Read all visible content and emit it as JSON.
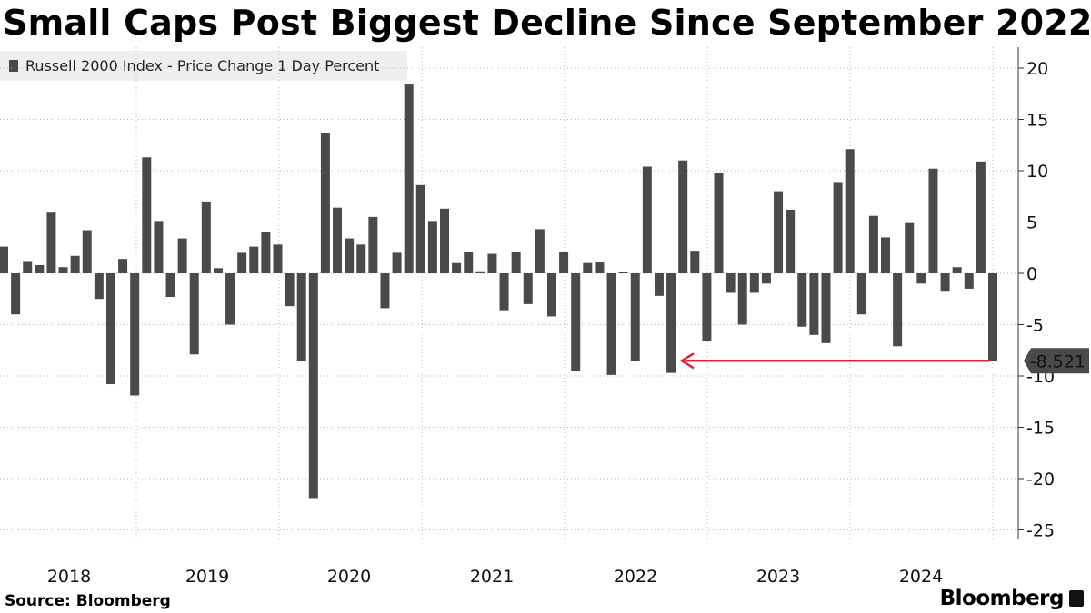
{
  "header": {
    "title": "Small Caps Post Biggest Decline Since September 2022"
  },
  "legend": {
    "label": "Russell 2000 Index - Price Change 1 Day Percent",
    "swatch_color": "#4a4a4a"
  },
  "footer": {
    "source": "Source: Bloomberg",
    "brand": "Bloomberg"
  },
  "colors": {
    "bar": "#4a4a4a",
    "arrow": "#e0203a",
    "grid": "#bbbbbb",
    "callout_bg": "#4a4a4a",
    "callout_text": "#ffffff"
  },
  "chart_data": {
    "type": "bar",
    "title": "Small Caps Post Biggest Decline Since September 2022",
    "series": [
      {
        "name": "Russell 2000 Index - Price Change 1 Day Percent",
        "values": [
          2.6,
          -4,
          1.2,
          0.8,
          6,
          0.6,
          1.7,
          4.2,
          -2.5,
          -10.8,
          1.4,
          -11.9,
          11.3,
          5.1,
          -2.3,
          3.4,
          -7.9,
          7,
          0.5,
          -5,
          2,
          2.6,
          4,
          2.8,
          -3.2,
          -8.5,
          -21.9,
          13.7,
          6.4,
          3.4,
          2.8,
          5.5,
          -3.4,
          2,
          18.4,
          8.6,
          5.1,
          6.3,
          1,
          2.1,
          0.2,
          1.9,
          -3.6,
          2.1,
          -3,
          4.3,
          -4.2,
          2.1,
          -9.5,
          1,
          1.1,
          -9.9,
          0.1,
          -8.5,
          10.4,
          -2.2,
          -9.7,
          11,
          2.2,
          -6.6,
          9.8,
          -1.9,
          -5,
          -1.9,
          -1,
          8,
          6.2,
          -5.2,
          -6,
          -6.8,
          8.9,
          12.1,
          -4,
          5.6,
          3.5,
          -7.1,
          4.9,
          -1,
          10.2,
          -1.7,
          0.6,
          -1.5,
          10.9,
          -8.521
        ]
      }
    ],
    "ylim": [
      -26,
      22
    ],
    "yticks": [
      20,
      15,
      10,
      5,
      0,
      -5,
      -10,
      -15,
      -20,
      -25
    ],
    "ytick_labels": [
      "20",
      "15",
      "10",
      "5",
      "0",
      "-5",
      "-10",
      "-15",
      "-20",
      "-25"
    ],
    "x_tick_labels": [
      "2018",
      "2019",
      "2020",
      "2021",
      "2022",
      "2023",
      "2024"
    ],
    "last_value_label": "-8.521",
    "annotation": {
      "type": "arrow",
      "from_value": -8.521,
      "pointing_to": "2022 low",
      "level": -8.521
    },
    "xlabel": "",
    "ylabel": "",
    "grid": true,
    "legend_position": "top-left"
  }
}
